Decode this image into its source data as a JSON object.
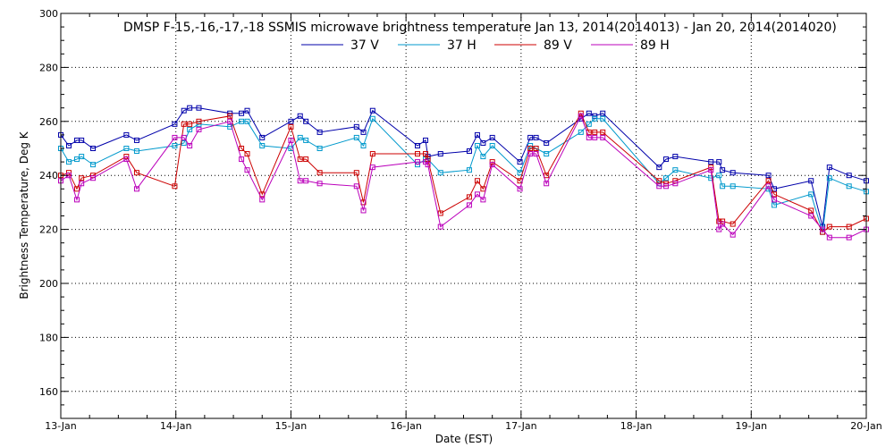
{
  "chart_data": {
    "type": "line",
    "title": "DMSP F-15,-16,-17,-18 SSMIS microwave brightness temperature Jan 13, 2014(2014013) - Jan 20, 2014(2014020)",
    "xlabel": "Date (EST)",
    "ylabel": "Brightness Temperature, Deg K",
    "xlim": [
      0,
      7
    ],
    "ylim": [
      150,
      300
    ],
    "x_ticks": [
      {
        "x": 0,
        "label": "13-Jan"
      },
      {
        "x": 1,
        "label": "14-Jan"
      },
      {
        "x": 2,
        "label": "15-Jan"
      },
      {
        "x": 3,
        "label": "16-Jan"
      },
      {
        "x": 4,
        "label": "17-Jan"
      },
      {
        "x": 5,
        "label": "18-Jan"
      },
      {
        "x": 6,
        "label": "19-Jan"
      },
      {
        "x": 7,
        "label": "20-Jan"
      }
    ],
    "y_ticks": [
      160,
      180,
      200,
      220,
      240,
      260,
      280,
      300
    ],
    "grid": true,
    "legend": "top",
    "series": [
      {
        "name": "37 V",
        "color": "#0000aa",
        "points": [
          [
            0.0,
            255
          ],
          [
            0.07,
            251
          ],
          [
            0.14,
            253
          ],
          [
            0.18,
            253
          ],
          [
            0.28,
            250
          ],
          [
            0.57,
            255
          ],
          [
            0.66,
            253
          ],
          [
            0.99,
            259
          ],
          [
            1.07,
            264
          ],
          [
            1.12,
            265
          ],
          [
            1.2,
            265
          ],
          [
            1.47,
            263
          ],
          [
            1.57,
            263
          ],
          [
            1.62,
            264
          ],
          [
            1.75,
            254
          ],
          [
            2.0,
            260
          ],
          [
            2.08,
            262
          ],
          [
            2.13,
            260
          ],
          [
            2.25,
            256
          ],
          [
            2.57,
            258
          ],
          [
            2.63,
            256
          ],
          [
            2.71,
            264
          ],
          [
            3.1,
            251
          ],
          [
            3.17,
            253
          ],
          [
            3.19,
            247
          ],
          [
            3.3,
            248
          ],
          [
            3.55,
            249
          ],
          [
            3.62,
            255
          ],
          [
            3.67,
            252
          ],
          [
            3.75,
            254
          ],
          [
            3.99,
            245
          ],
          [
            4.08,
            254
          ],
          [
            4.13,
            254
          ],
          [
            4.22,
            252
          ],
          [
            4.52,
            261
          ],
          [
            4.59,
            263
          ],
          [
            4.64,
            262
          ],
          [
            4.71,
            263
          ],
          [
            5.2,
            243
          ],
          [
            5.26,
            246
          ],
          [
            5.34,
            247
          ],
          [
            5.65,
            245
          ],
          [
            5.72,
            245
          ],
          [
            5.75,
            242
          ],
          [
            5.84,
            241
          ],
          [
            6.15,
            240
          ],
          [
            6.2,
            235
          ],
          [
            6.52,
            238
          ],
          [
            6.62,
            221
          ],
          [
            6.68,
            243
          ],
          [
            6.85,
            240
          ],
          [
            7.0,
            238
          ]
        ]
      },
      {
        "name": "37 H",
        "color": "#0099cc",
        "points": [
          [
            0.0,
            250
          ],
          [
            0.07,
            245
          ],
          [
            0.14,
            246
          ],
          [
            0.18,
            247
          ],
          [
            0.28,
            244
          ],
          [
            0.57,
            250
          ],
          [
            0.66,
            249
          ],
          [
            0.99,
            251
          ],
          [
            1.07,
            252
          ],
          [
            1.12,
            257
          ],
          [
            1.2,
            259
          ],
          [
            1.47,
            258
          ],
          [
            1.57,
            260
          ],
          [
            1.62,
            260
          ],
          [
            1.75,
            251
          ],
          [
            2.0,
            250
          ],
          [
            2.08,
            254
          ],
          [
            2.13,
            253
          ],
          [
            2.25,
            250
          ],
          [
            2.57,
            254
          ],
          [
            2.63,
            251
          ],
          [
            2.71,
            261
          ],
          [
            3.1,
            244
          ],
          [
            3.17,
            246
          ],
          [
            3.19,
            246
          ],
          [
            3.3,
            241
          ],
          [
            3.55,
            242
          ],
          [
            3.62,
            251
          ],
          [
            3.67,
            247
          ],
          [
            3.75,
            251
          ],
          [
            3.99,
            241
          ],
          [
            4.08,
            251
          ],
          [
            4.13,
            250
          ],
          [
            4.22,
            248
          ],
          [
            4.52,
            256
          ],
          [
            4.59,
            259
          ],
          [
            4.64,
            261
          ],
          [
            4.71,
            261
          ],
          [
            5.2,
            237
          ],
          [
            5.26,
            239
          ],
          [
            5.34,
            242
          ],
          [
            5.65,
            239
          ],
          [
            5.72,
            240
          ],
          [
            5.75,
            236
          ],
          [
            5.84,
            236
          ],
          [
            6.15,
            235
          ],
          [
            6.2,
            229
          ],
          [
            6.52,
            233
          ],
          [
            6.62,
            219
          ],
          [
            6.68,
            239
          ],
          [
            6.85,
            236
          ],
          [
            7.0,
            234
          ]
        ]
      },
      {
        "name": "89 V",
        "color": "#cc0000",
        "points": [
          [
            0.0,
            240
          ],
          [
            0.07,
            241
          ],
          [
            0.14,
            235
          ],
          [
            0.18,
            239
          ],
          [
            0.28,
            240
          ],
          [
            0.57,
            247
          ],
          [
            0.66,
            241
          ],
          [
            0.99,
            236
          ],
          [
            1.07,
            259
          ],
          [
            1.12,
            259
          ],
          [
            1.2,
            260
          ],
          [
            1.47,
            262
          ],
          [
            1.57,
            250
          ],
          [
            1.62,
            248
          ],
          [
            1.75,
            233
          ],
          [
            2.0,
            258
          ],
          [
            2.08,
            246
          ],
          [
            2.13,
            246
          ],
          [
            2.25,
            241
          ],
          [
            2.57,
            241
          ],
          [
            2.63,
            230
          ],
          [
            2.71,
            248
          ],
          [
            3.1,
            248
          ],
          [
            3.17,
            248
          ],
          [
            3.19,
            246
          ],
          [
            3.3,
            226
          ],
          [
            3.55,
            232
          ],
          [
            3.62,
            238
          ],
          [
            3.67,
            235
          ],
          [
            3.75,
            245
          ],
          [
            3.99,
            238
          ],
          [
            4.08,
            250
          ],
          [
            4.13,
            250
          ],
          [
            4.22,
            240
          ],
          [
            4.52,
            263
          ],
          [
            4.59,
            256
          ],
          [
            4.64,
            256
          ],
          [
            4.71,
            256
          ],
          [
            5.2,
            238
          ],
          [
            5.26,
            237
          ],
          [
            5.34,
            238
          ],
          [
            5.65,
            243
          ],
          [
            5.72,
            223
          ],
          [
            5.75,
            223
          ],
          [
            5.84,
            222
          ],
          [
            6.15,
            238
          ],
          [
            6.2,
            233
          ],
          [
            6.52,
            227
          ],
          [
            6.62,
            219
          ],
          [
            6.68,
            221
          ],
          [
            6.85,
            221
          ],
          [
            7.0,
            224
          ]
        ]
      },
      {
        "name": "89 H",
        "color": "#bb00bb",
        "points": [
          [
            0.0,
            238
          ],
          [
            0.07,
            240
          ],
          [
            0.14,
            231
          ],
          [
            0.18,
            237
          ],
          [
            0.28,
            239
          ],
          [
            0.57,
            246
          ],
          [
            0.66,
            235
          ],
          [
            0.99,
            254
          ],
          [
            1.07,
            254
          ],
          [
            1.12,
            251
          ],
          [
            1.2,
            257
          ],
          [
            1.47,
            260
          ],
          [
            1.57,
            246
          ],
          [
            1.62,
            242
          ],
          [
            1.75,
            231
          ],
          [
            2.0,
            253
          ],
          [
            2.08,
            238
          ],
          [
            2.13,
            238
          ],
          [
            2.25,
            237
          ],
          [
            2.57,
            236
          ],
          [
            2.63,
            227
          ],
          [
            2.71,
            243
          ],
          [
            3.1,
            245
          ],
          [
            3.17,
            245
          ],
          [
            3.19,
            244
          ],
          [
            3.3,
            221
          ],
          [
            3.55,
            229
          ],
          [
            3.62,
            233
          ],
          [
            3.67,
            231
          ],
          [
            3.75,
            244
          ],
          [
            3.99,
            235
          ],
          [
            4.08,
            248
          ],
          [
            4.13,
            248
          ],
          [
            4.22,
            237
          ],
          [
            4.52,
            262
          ],
          [
            4.59,
            254
          ],
          [
            4.64,
            254
          ],
          [
            4.71,
            254
          ],
          [
            5.2,
            236
          ],
          [
            5.26,
            236
          ],
          [
            5.34,
            237
          ],
          [
            5.65,
            242
          ],
          [
            5.72,
            220
          ],
          [
            5.75,
            222
          ],
          [
            5.84,
            218
          ],
          [
            6.15,
            236
          ],
          [
            6.2,
            231
          ],
          [
            6.52,
            225
          ],
          [
            6.62,
            220
          ],
          [
            6.68,
            217
          ],
          [
            6.85,
            217
          ],
          [
            7.0,
            220
          ]
        ]
      }
    ]
  }
}
